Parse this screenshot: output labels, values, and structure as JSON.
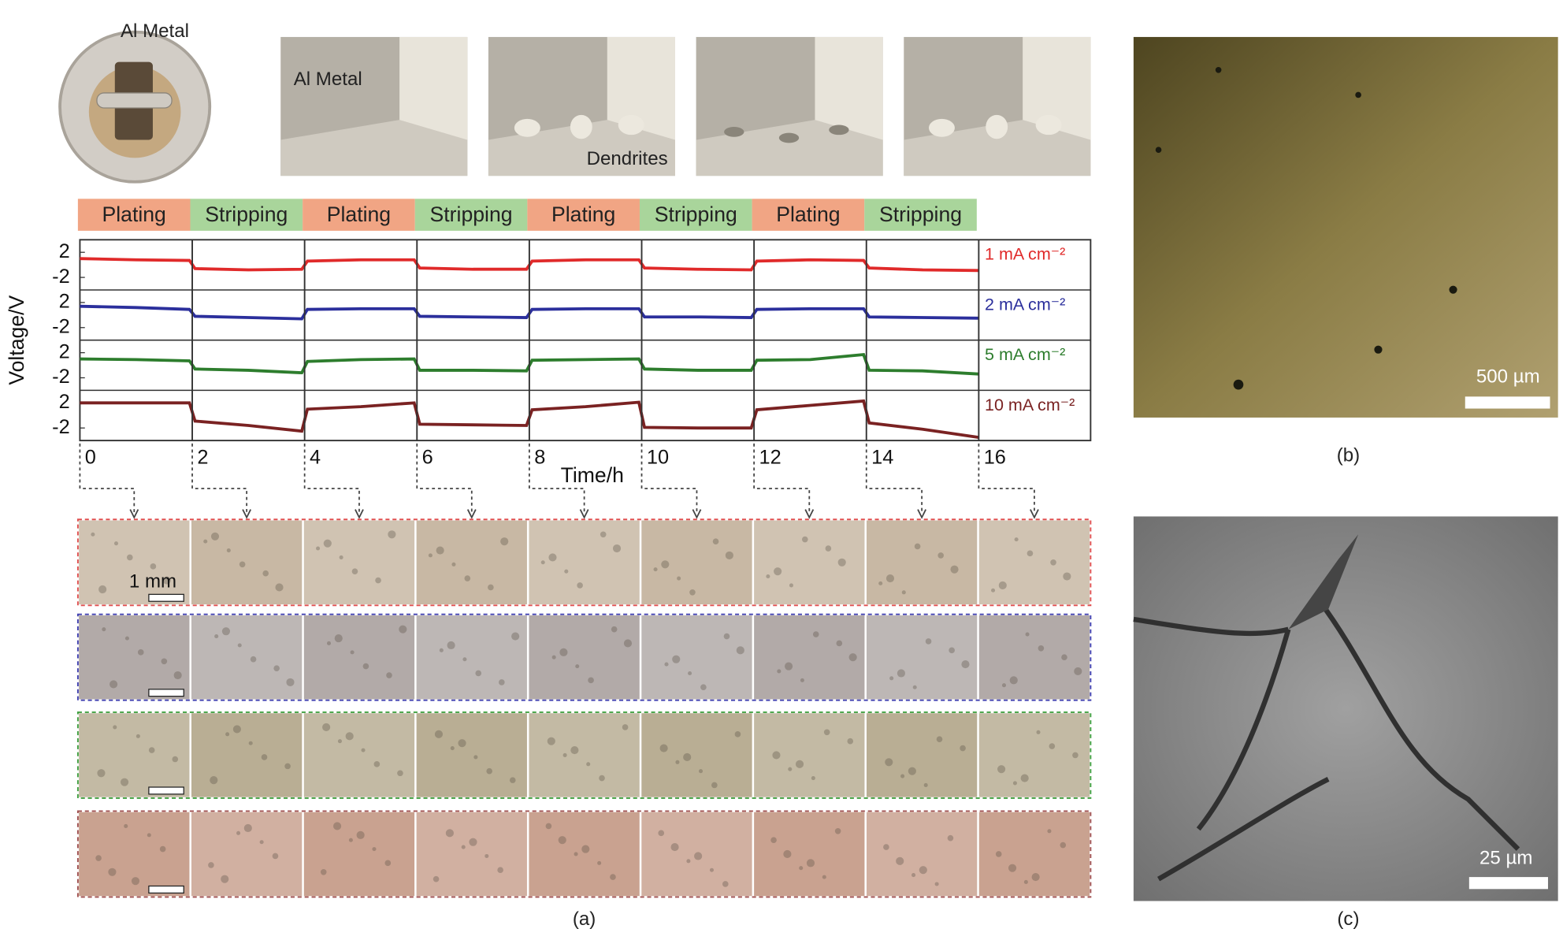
{
  "illustration": {
    "labels": [
      "Al Metal",
      "Al Metal",
      "Dendrites"
    ]
  },
  "phases": [
    "Plating",
    "Stripping",
    "Plating",
    "Stripping",
    "Plating",
    "Stripping",
    "Plating",
    "Stripping"
  ],
  "scale_bars": {
    "a": "1 mm",
    "b": "500 µm",
    "c": "25 µm"
  },
  "panel_labels": {
    "a": "(a)",
    "b": "(b)",
    "c": "(c)"
  },
  "chart_data": [
    {
      "type": "line",
      "ylabel": "Voltage/V",
      "x": [
        0,
        1,
        1.95,
        2.05,
        3,
        3.95,
        4.05,
        5,
        5.95,
        6.05,
        7,
        7.95,
        8.05,
        9,
        9.95,
        10.05,
        11,
        11.95,
        12.05,
        13,
        13.95,
        14.05,
        15,
        16
      ],
      "xlim": [
        0,
        16
      ],
      "ylim": [
        -4,
        4
      ],
      "yticks": [
        2,
        -2
      ],
      "series": [
        {
          "name": "1 mA cm⁻²",
          "color": "#e02a2a",
          "values": [
            1.0,
            0.8,
            0.7,
            -0.6,
            -0.8,
            -0.7,
            0.6,
            0.8,
            0.8,
            -0.5,
            -0.7,
            -0.7,
            0.6,
            0.8,
            0.8,
            -0.5,
            -0.7,
            -0.8,
            0.6,
            0.8,
            0.7,
            -0.5,
            -0.8,
            -0.9
          ]
        }
      ]
    },
    {
      "type": "line",
      "x": [
        0,
        1,
        1.95,
        2.05,
        3,
        3.95,
        4.05,
        5,
        5.95,
        6.05,
        7,
        7.95,
        8.05,
        9,
        9.95,
        10.05,
        11,
        11.95,
        12.05,
        13,
        13.95,
        14.05,
        15,
        16
      ],
      "xlim": [
        0,
        16
      ],
      "ylim": [
        -4,
        4
      ],
      "yticks": [
        2,
        -2
      ],
      "series": [
        {
          "name": "2 mA cm⁻²",
          "color": "#2b2f9c",
          "values": [
            1.4,
            1.2,
            0.9,
            -0.2,
            -0.4,
            -0.6,
            0.9,
            1.0,
            1.0,
            -0.2,
            -0.3,
            -0.4,
            0.9,
            1.0,
            1.0,
            -0.3,
            -0.3,
            -0.4,
            0.9,
            1.0,
            1.0,
            -0.3,
            -0.4,
            -0.5
          ]
        }
      ]
    },
    {
      "type": "line",
      "x": [
        0,
        1,
        1.95,
        2.05,
        3,
        3.95,
        4.05,
        5,
        5.95,
        6.05,
        7,
        7.95,
        8.05,
        9,
        9.95,
        10.05,
        11,
        11.95,
        12.05,
        13,
        13.95,
        14.05,
        15,
        16
      ],
      "xlim": [
        0,
        16
      ],
      "ylim": [
        -4,
        4
      ],
      "yticks": [
        2,
        -2
      ],
      "series": [
        {
          "name": "5 mA cm⁻²",
          "color": "#2d7d2d",
          "values": [
            1.0,
            0.9,
            0.7,
            -0.6,
            -0.8,
            -1.2,
            0.6,
            0.9,
            1.0,
            -0.8,
            -0.8,
            -0.9,
            0.8,
            0.9,
            1.0,
            -0.6,
            -0.8,
            -0.8,
            0.8,
            0.9,
            1.7,
            -0.8,
            -0.9,
            -1.4
          ]
        }
      ]
    },
    {
      "type": "line",
      "xlabel": "Time/h",
      "x": [
        0,
        1,
        1.95,
        2.05,
        3,
        3.95,
        4.05,
        5,
        5.95,
        6.05,
        7,
        7.95,
        8.05,
        9,
        9.95,
        10.05,
        11,
        11.95,
        12.05,
        13,
        13.95,
        14.05,
        15,
        16
      ],
      "xlim": [
        0,
        16
      ],
      "ylim": [
        -4,
        4
      ],
      "yticks": [
        2,
        -2
      ],
      "xticks": [
        0,
        2,
        4,
        6,
        8,
        10,
        12,
        14,
        16
      ],
      "series": [
        {
          "name": "10 mA cm⁻²",
          "color": "#7a2222",
          "values": [
            2.0,
            2.0,
            2.0,
            -0.9,
            -1.6,
            -2.5,
            1.0,
            1.4,
            2.0,
            -1.4,
            -1.5,
            -1.6,
            0.9,
            1.4,
            2.1,
            -1.9,
            -2.0,
            -2.0,
            0.9,
            1.6,
            2.3,
            -1.2,
            -2.2,
            -3.5
          ]
        }
      ]
    }
  ]
}
